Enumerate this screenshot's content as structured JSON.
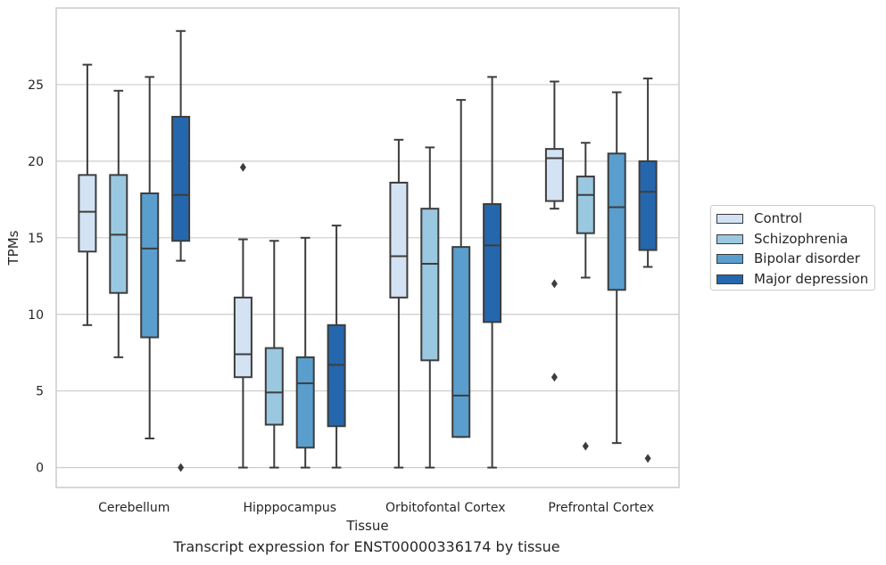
{
  "chart_data": {
    "type": "box",
    "caption": "Transcript expression for ENST00000336174 by tissue",
    "xlabel": "Tissue",
    "ylabel": "TPMs",
    "ylim": [
      -1.3,
      30
    ],
    "yticks": [
      0,
      5,
      10,
      15,
      20,
      25
    ],
    "grid": "horizontal",
    "legend_position": "right",
    "categories": [
      "Cerebellum",
      "Hipppocampus",
      "Orbitofontal Cortex",
      "Prefrontal Cortex"
    ],
    "series": [
      {
        "name": "Control",
        "color": "#d3e3f3",
        "boxes": [
          {
            "whisker_low": 9.3,
            "q1": 14.1,
            "median": 16.7,
            "q3": 19.1,
            "whisker_high": 26.3,
            "outliers": []
          },
          {
            "whisker_low": 0.0,
            "q1": 5.9,
            "median": 7.4,
            "q3": 11.1,
            "whisker_high": 14.9,
            "outliers": [
              19.6
            ]
          },
          {
            "whisker_low": 0.0,
            "q1": 11.1,
            "median": 13.8,
            "q3": 18.6,
            "whisker_high": 21.4,
            "outliers": []
          },
          {
            "whisker_low": 16.9,
            "q1": 17.4,
            "median": 20.2,
            "q3": 20.8,
            "whisker_high": 25.2,
            "outliers": [
              12.0,
              5.9
            ]
          }
        ]
      },
      {
        "name": "Schizophrenia",
        "color": "#9ac8e0",
        "boxes": [
          {
            "whisker_low": 7.2,
            "q1": 11.4,
            "median": 15.2,
            "q3": 19.1,
            "whisker_high": 24.6,
            "outliers": []
          },
          {
            "whisker_low": 0.0,
            "q1": 2.8,
            "median": 4.9,
            "q3": 7.8,
            "whisker_high": 14.8,
            "outliers": []
          },
          {
            "whisker_low": 0.0,
            "q1": 7.0,
            "median": 13.3,
            "q3": 16.9,
            "whisker_high": 20.9,
            "outliers": []
          },
          {
            "whisker_low": 12.4,
            "q1": 15.3,
            "median": 17.8,
            "q3": 19.0,
            "whisker_high": 21.2,
            "outliers": [
              1.4
            ]
          }
        ]
      },
      {
        "name": "Bipolar disorder",
        "color": "#5a9ecd",
        "boxes": [
          {
            "whisker_low": 1.9,
            "q1": 8.5,
            "median": 14.3,
            "q3": 17.9,
            "whisker_high": 25.5,
            "outliers": []
          },
          {
            "whisker_low": 0.0,
            "q1": 1.3,
            "median": 5.5,
            "q3": 7.2,
            "whisker_high": 15.0,
            "outliers": []
          },
          {
            "whisker_low": 2.0,
            "q1": 2.0,
            "median": 4.7,
            "q3": 14.4,
            "whisker_high": 24.0,
            "outliers": []
          },
          {
            "whisker_low": 1.6,
            "q1": 11.6,
            "median": 17.0,
            "q3": 20.5,
            "whisker_high": 24.5,
            "outliers": []
          }
        ]
      },
      {
        "name": "Major depression",
        "color": "#2567ac",
        "boxes": [
          {
            "whisker_low": 13.5,
            "q1": 14.8,
            "median": 17.8,
            "q3": 22.9,
            "whisker_high": 28.5,
            "outliers": [
              0.0
            ]
          },
          {
            "whisker_low": 0.0,
            "q1": 2.7,
            "median": 6.7,
            "q3": 9.3,
            "whisker_high": 15.8,
            "outliers": []
          },
          {
            "whisker_low": 0.0,
            "q1": 9.5,
            "median": 14.5,
            "q3": 17.2,
            "whisker_high": 25.5,
            "outliers": []
          },
          {
            "whisker_low": 13.1,
            "q1": 14.2,
            "median": 18.0,
            "q3": 20.0,
            "whisker_high": 25.4,
            "outliers": [
              0.6
            ]
          }
        ]
      }
    ]
  }
}
